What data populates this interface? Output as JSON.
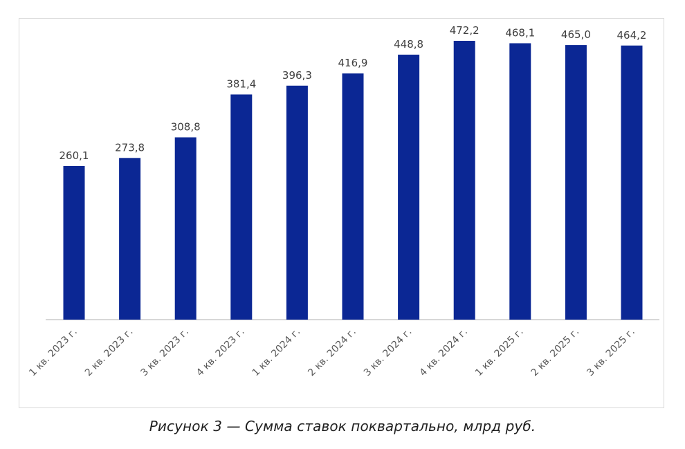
{
  "colors": {
    "bar": "#0b2794",
    "axis": "#bfbfbf",
    "frame": "#d9d9d9"
  },
  "caption": "Рисунок 3 — Сумма ставок поквартально, млрд руб.",
  "chart_data": {
    "type": "bar",
    "categories": [
      "1 кв. 2023 г.",
      "2 кв. 2023 г.",
      "3 кв. 2023 г.",
      "4 кв. 2023 г.",
      "1 кв. 2024 г.",
      "2 кв. 2024 г.",
      "3 кв. 2024 г.",
      "4 кв. 2024 г.",
      "1 кв. 2025 г.",
      "2 кв. 2025 г.",
      "3 кв. 2025 г."
    ],
    "values": [
      260.1,
      273.8,
      308.8,
      381.4,
      396.3,
      416.9,
      448.8,
      472.2,
      468.1,
      465.0,
      464.2
    ],
    "value_labels": [
      "260,1",
      "273,8",
      "308,8",
      "381,4",
      "396,3",
      "416,9",
      "448,8",
      "472,2",
      "468,1",
      "465,0",
      "464,2"
    ],
    "title": "",
    "xlabel": "",
    "ylabel": "",
    "ylim": [
      0,
      500
    ],
    "grid": false,
    "legend": "none"
  }
}
